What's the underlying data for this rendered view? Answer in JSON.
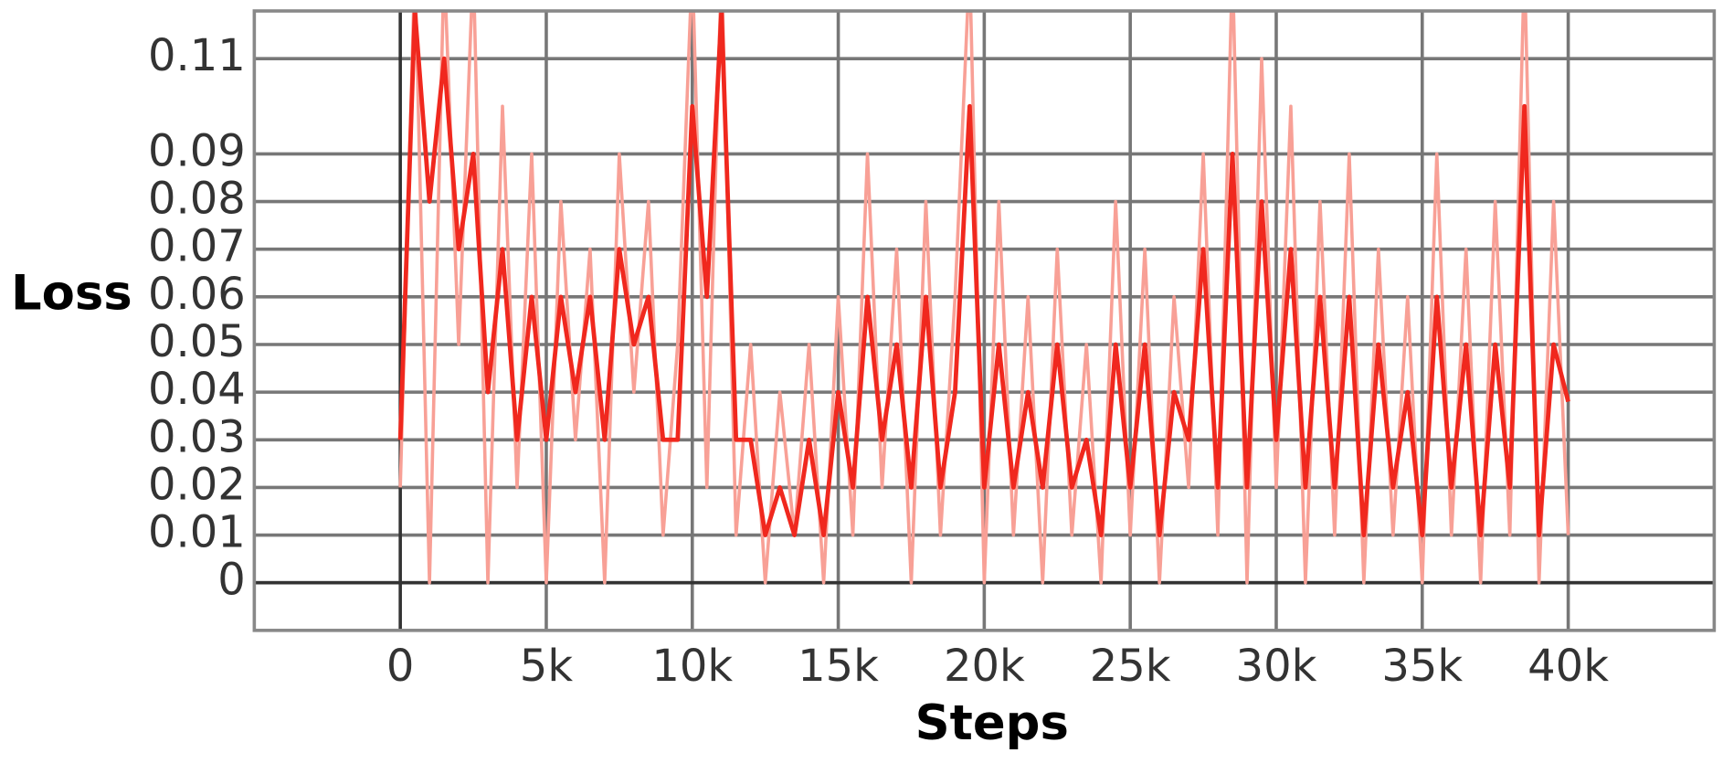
{
  "chart_data": {
    "type": "line",
    "x_label": "Steps",
    "y_label": "Loss",
    "x": [
      0,
      500,
      1000,
      1500,
      2000,
      2500,
      3000,
      3500,
      4000,
      4500,
      5000,
      5500,
      6000,
      6500,
      7000,
      7500,
      8000,
      8500,
      9000,
      9500,
      10000,
      10500,
      11000,
      11500,
      12000,
      12500,
      13000,
      13500,
      14000,
      14500,
      15000,
      15500,
      16000,
      16500,
      17000,
      17500,
      18000,
      18500,
      19000,
      19500,
      20000,
      20500,
      21000,
      21500,
      22000,
      22500,
      23000,
      23500,
      24000,
      24500,
      25000,
      25500,
      26000,
      26500,
      27000,
      27500,
      28000,
      28500,
      29000,
      29500,
      30000,
      30500,
      31000,
      31500,
      32000,
      32500,
      33000,
      33500,
      34000,
      34500,
      35000,
      35500,
      36000,
      36500,
      37000,
      37500,
      38000,
      38500,
      39000,
      39500,
      40000
    ],
    "series": [
      {
        "color": "#f8a096",
        "values": [
          0.02,
          0.13,
          0.0,
          0.13,
          0.05,
          0.13,
          0.0,
          0.1,
          0.02,
          0.09,
          0.0,
          0.08,
          0.03,
          0.07,
          0.0,
          0.09,
          0.04,
          0.08,
          0.01,
          0.05,
          0.13,
          0.02,
          0.13,
          0.01,
          0.05,
          0.0,
          0.04,
          0.01,
          0.05,
          0.0,
          0.06,
          0.01,
          0.09,
          0.02,
          0.07,
          0.0,
          0.08,
          0.01,
          0.06,
          0.13,
          0.0,
          0.08,
          0.01,
          0.06,
          0.0,
          0.07,
          0.01,
          0.05,
          0.0,
          0.08,
          0.01,
          0.07,
          0.0,
          0.06,
          0.02,
          0.09,
          0.01,
          0.13,
          0.0,
          0.11,
          0.02,
          0.1,
          0.0,
          0.08,
          0.01,
          0.09,
          0.0,
          0.07,
          0.01,
          0.06,
          0.0,
          0.09,
          0.01,
          0.07,
          0.0,
          0.08,
          0.01,
          0.13,
          0.0,
          0.08,
          0.01
        ]
      },
      {
        "color": "#f0281e",
        "values": [
          0.03,
          0.12,
          0.08,
          0.11,
          0.07,
          0.09,
          0.04,
          0.07,
          0.03,
          0.06,
          0.03,
          0.06,
          0.04,
          0.06,
          0.03,
          0.07,
          0.05,
          0.06,
          0.03,
          0.03,
          0.1,
          0.06,
          0.12,
          0.03,
          0.03,
          0.01,
          0.02,
          0.01,
          0.03,
          0.01,
          0.04,
          0.02,
          0.06,
          0.03,
          0.05,
          0.02,
          0.06,
          0.02,
          0.04,
          0.1,
          0.02,
          0.05,
          0.02,
          0.04,
          0.02,
          0.05,
          0.02,
          0.03,
          0.01,
          0.05,
          0.02,
          0.05,
          0.01,
          0.04,
          0.03,
          0.07,
          0.02,
          0.09,
          0.02,
          0.08,
          0.03,
          0.07,
          0.02,
          0.06,
          0.02,
          0.06,
          0.01,
          0.05,
          0.02,
          0.04,
          0.01,
          0.06,
          0.02,
          0.05,
          0.01,
          0.05,
          0.02,
          0.1,
          0.01,
          0.05,
          0.038
        ]
      }
    ],
    "xlim": [
      -5000,
      45000
    ],
    "ylim": [
      -0.01,
      0.12
    ],
    "xticks": [
      0,
      {
        "value": 5000,
        "label": "5k"
      },
      {
        "value": 10000,
        "label": "10k"
      },
      {
        "value": 15000,
        "label": "15k"
      },
      {
        "value": 20000,
        "label": "20k"
      },
      {
        "value": 25000,
        "label": "25k"
      },
      {
        "value": 30000,
        "label": "30k"
      },
      {
        "value": 35000,
        "label": "35k"
      },
      {
        "value": 40000,
        "label": "40k"
      }
    ],
    "yticks": [
      0,
      0.01,
      0.02,
      0.03,
      0.04,
      0.05,
      0.06,
      0.07,
      0.08,
      0.09,
      0.11
    ],
    "grid": true
  }
}
